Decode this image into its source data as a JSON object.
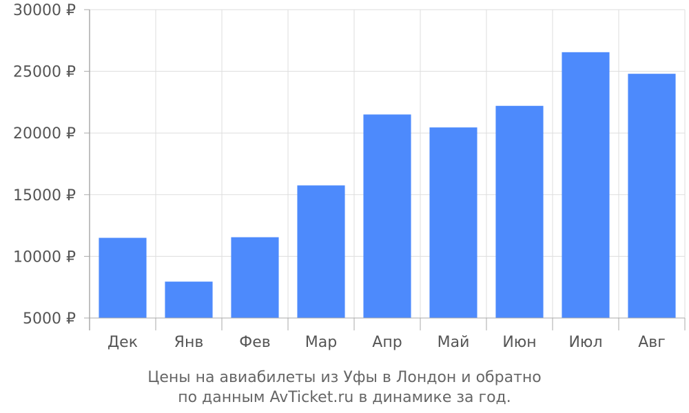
{
  "chart_data": {
    "type": "bar",
    "title": "",
    "xlabel": "",
    "ylabel": "",
    "caption": [
      "Цены на авиабилеты из Уфы в Лондон и обратно",
      "по данным AvTicket.ru в динамике за год."
    ],
    "categories": [
      "Дек",
      "Янв",
      "Фев",
      "Мар",
      "Апр",
      "Май",
      "Июн",
      "Июл",
      "Авг"
    ],
    "values": [
      11500,
      7950,
      11550,
      15750,
      21500,
      20450,
      22200,
      26550,
      24800
    ],
    "ylim": [
      5000,
      30000
    ],
    "yticks": [
      5000,
      10000,
      15000,
      20000,
      25000,
      30000
    ],
    "ytick_labels": [
      "5000 ₽",
      "10000 ₽",
      "15000 ₽",
      "20000 ₽",
      "25000 ₽",
      "30000 ₽"
    ],
    "grid": true,
    "bar_color": "#4d8afc",
    "grid_color": "#dddddd",
    "axis_color": "#aaaaaa",
    "text_color": "#555555"
  }
}
